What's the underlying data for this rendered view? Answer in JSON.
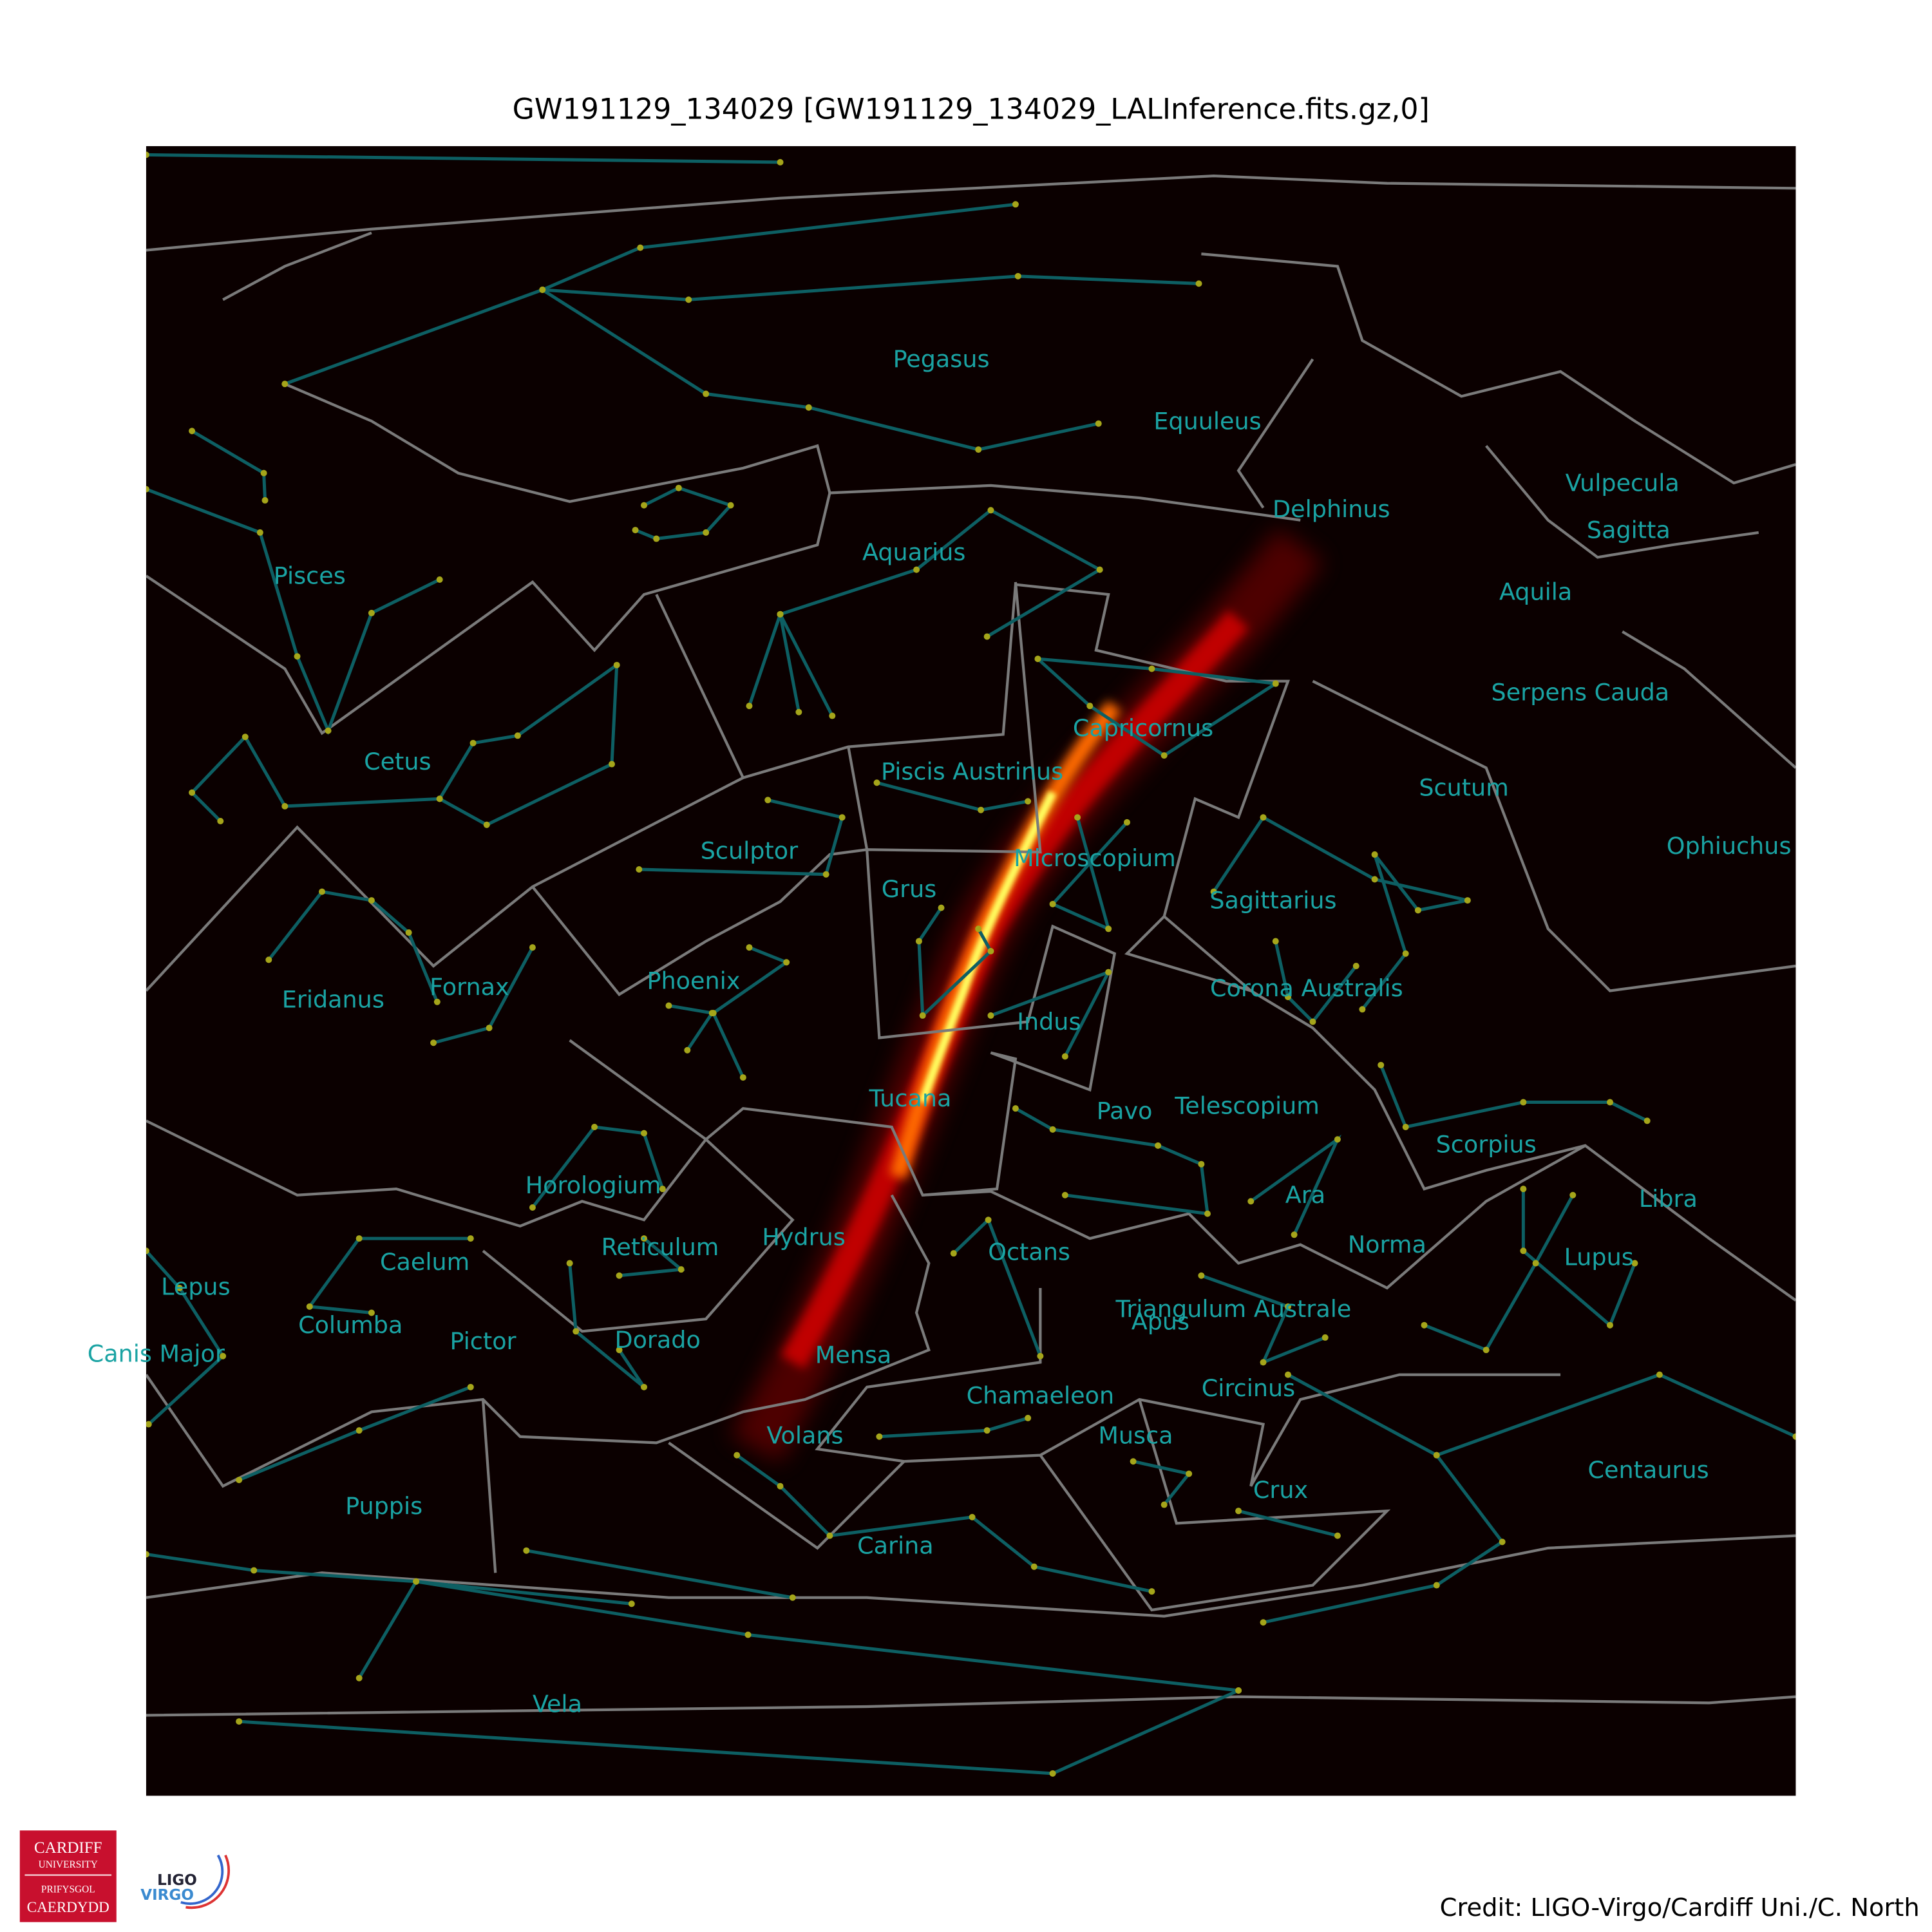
{
  "header": {
    "title": "GW191129_134029 [GW191129_134029_LALInference.fits.gz,0]"
  },
  "constellations": [
    "Pegasus",
    "Equuleus",
    "Delphinus",
    "Vulpecula",
    "Sagitta",
    "Pisces",
    "Aquarius",
    "Aquila",
    "Serpens Cauda",
    "Capricornus",
    "Cetus",
    "Piscis Austrinus",
    "Scutum",
    "Ophiuchus",
    "Sculptor",
    "Microscopium",
    "Grus",
    "Sagittarius",
    "Eridanus",
    "Fornax",
    "Phoenix",
    "Corona Australis",
    "Indus",
    "Tucana",
    "Pavo",
    "Telescopium",
    "Scorpius",
    "Horologium",
    "Ara",
    "Libra",
    "Hydrus",
    "Reticulum",
    "Caelum",
    "Octans",
    "Norma",
    "Lupus",
    "Lepus",
    "Triangulum Australe",
    "Apus",
    "Columba",
    "Canis Major",
    "Pictor",
    "Dorado",
    "Mensa",
    "Circinus",
    "Chamaeleon",
    "Volans",
    "Musca",
    "Centaurus",
    "Crux",
    "Puppis",
    "Carina",
    "Vela"
  ],
  "logos": {
    "cardiff": [
      "CARDIFF",
      "UNIVERSITY",
      "PRIFYSGOL",
      "CAERDYDD"
    ],
    "ligo": "LIGO",
    "virgo": "VIRGO"
  },
  "footer": {
    "credit": "Credit: LIGO-Virgo/Cardiff Uni./C. North"
  }
}
